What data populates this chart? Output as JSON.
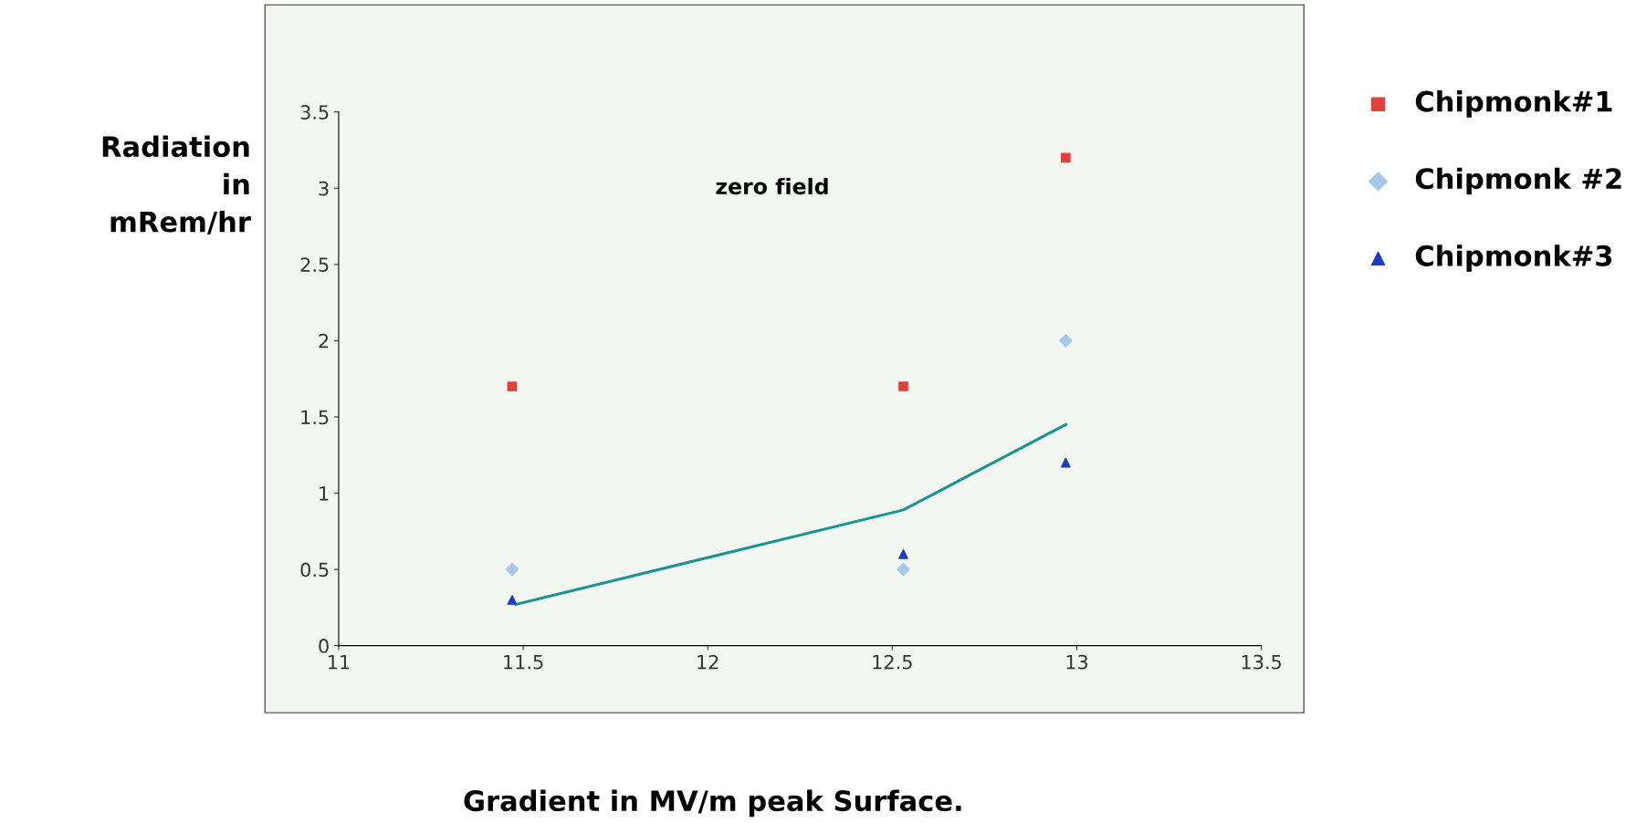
{
  "chart_data": {
    "type": "scatter",
    "xlabel": "Gradient in MV/m peak Surface.",
    "ylabel": "Radiation\nin\nmRem/hr",
    "annotations": [
      "zero field"
    ],
    "series": [
      {
        "name": "Chipmonk#1",
        "color": "#e0403c",
        "marker": "square",
        "x": [
          11.47,
          12.53,
          12.97
        ],
        "values": [
          1.7,
          1.7,
          3.2
        ]
      },
      {
        "name": "Chipmonk #2",
        "color": "#a8c8e8",
        "marker": "diamond",
        "x": [
          11.47,
          12.53,
          12.97
        ],
        "values": [
          0.5,
          0.5,
          2.0
        ]
      },
      {
        "name": "Chipmonk#3",
        "color": "#1f3cc0",
        "marker": "triangle",
        "x": [
          11.47,
          12.53,
          12.97
        ],
        "values": [
          0.3,
          0.6,
          1.2
        ]
      },
      {
        "type": "line",
        "color": "#1a9490",
        "marker": "none",
        "x": [
          11.48,
          12.53,
          12.97
        ],
        "values": [
          0.27,
          0.89,
          1.45
        ]
      }
    ],
    "xlim": [
      11,
      13.5
    ],
    "xticks": [
      11,
      11.5,
      12,
      12.5,
      13,
      13.5
    ],
    "ylim": [
      0,
      3.5
    ],
    "yticks": [
      0,
      0.5,
      1,
      1.5,
      2,
      2.5,
      3,
      3.5
    ],
    "grid": false,
    "legend": "right"
  }
}
